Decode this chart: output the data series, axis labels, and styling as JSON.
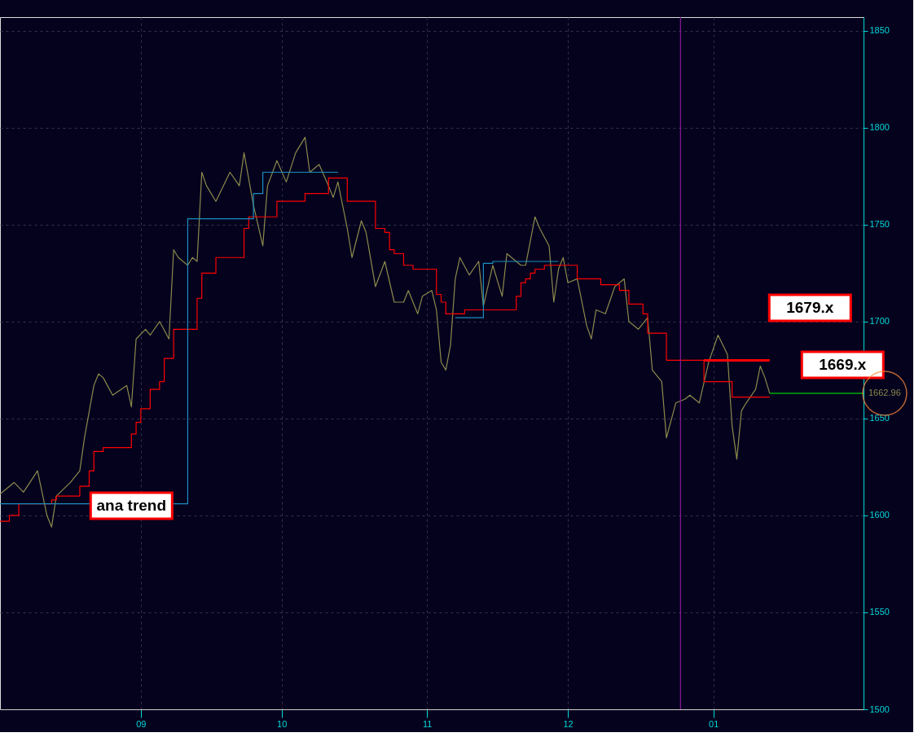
{
  "chart_data": {
    "type": "line",
    "xlim": [
      "2012-08-02",
      "2013-02-02"
    ],
    "ylim": [
      1500,
      1857
    ],
    "xticks": [
      {
        "value": "2012-09-01",
        "label": "09"
      },
      {
        "value": "2012-10-01",
        "label": "10"
      },
      {
        "value": "2012-11-01",
        "label": "11"
      },
      {
        "value": "2012-12-01",
        "label": "12"
      },
      {
        "value": "2013-01-01",
        "label": "01"
      }
    ],
    "yticks": [
      1500,
      1550,
      1600,
      1650,
      1700,
      1750,
      1800,
      1850
    ],
    "grid": true,
    "series": [
      {
        "type": "line",
        "color": "#8c8a4c",
        "x": [
          "2012-08-02",
          "2012-08-05",
          "2012-08-07",
          "2012-08-10",
          "2012-08-12",
          "2012-08-13",
          "2012-08-14",
          "2012-08-17",
          "2012-08-19",
          "2012-08-20",
          "2012-08-22",
          "2012-08-23",
          "2012-08-24",
          "2012-08-26",
          "2012-08-29",
          "2012-08-30",
          "2012-08-31",
          "2012-09-02",
          "2012-09-03",
          "2012-09-05",
          "2012-09-07",
          "2012-09-08",
          "2012-09-09",
          "2012-09-11",
          "2012-09-12",
          "2012-09-13",
          "2012-09-14",
          "2012-09-15",
          "2012-09-17",
          "2012-09-20",
          "2012-09-22",
          "2012-09-23",
          "2012-09-25",
          "2012-09-27",
          "2012-09-28",
          "2012-09-30",
          "2012-10-02",
          "2012-10-04",
          "2012-10-06",
          "2012-10-07",
          "2012-10-09",
          "2012-10-11",
          "2012-10-12",
          "2012-10-13",
          "2012-10-15",
          "2012-10-16",
          "2012-10-18",
          "2012-10-19",
          "2012-10-21",
          "2012-10-23",
          "2012-10-25",
          "2012-10-27",
          "2012-10-28",
          "2012-10-30",
          "2012-10-31",
          "2012-11-02",
          "2012-11-03",
          "2012-11-04",
          "2012-11-05",
          "2012-11-06",
          "2012-11-07",
          "2012-11-08",
          "2012-11-10",
          "2012-11-12",
          "2012-11-13",
          "2012-11-15",
          "2012-11-17",
          "2012-11-18",
          "2012-11-21",
          "2012-11-22",
          "2012-11-24",
          "2012-11-25",
          "2012-11-27",
          "2012-11-28",
          "2012-11-29",
          "2012-11-30",
          "2012-12-01",
          "2012-12-03",
          "2012-12-05",
          "2012-12-06",
          "2012-12-07",
          "2012-12-09",
          "2012-12-11",
          "2012-12-13",
          "2012-12-14",
          "2012-12-16",
          "2012-12-18",
          "2012-12-19",
          "2012-12-21",
          "2012-12-22",
          "2012-12-24",
          "2012-12-26",
          "2012-12-27",
          "2012-12-29",
          "2012-12-31",
          "2013-01-02",
          "2013-01-04",
          "2013-01-05",
          "2013-01-06",
          "2013-01-07",
          "2013-01-08",
          "2013-01-10",
          "2013-01-11",
          "2013-01-12",
          "2013-01-13"
        ],
        "values": [
          1611,
          1617,
          1612,
          1623,
          1600,
          1594,
          1610,
          1617,
          1623,
          1640,
          1667,
          1673,
          1671,
          1662,
          1667,
          1656,
          1691,
          1696,
          1693,
          1700,
          1691,
          1737,
          1733,
          1729,
          1733,
          1731,
          1777,
          1770,
          1762,
          1777,
          1770,
          1787,
          1760,
          1739,
          1770,
          1783,
          1772,
          1787,
          1795,
          1777,
          1781,
          1770,
          1764,
          1772,
          1748,
          1733,
          1752,
          1746,
          1718,
          1731,
          1710,
          1710,
          1716,
          1704,
          1713,
          1716,
          1706,
          1679,
          1675,
          1688,
          1722,
          1733,
          1724,
          1731,
          1708,
          1729,
          1713,
          1735,
          1729,
          1729,
          1754,
          1748,
          1739,
          1710,
          1727,
          1733,
          1720,
          1722,
          1698,
          1691,
          1706,
          1704,
          1718,
          1722,
          1700,
          1696,
          1702,
          1675,
          1669,
          1640,
          1658,
          1660,
          1662,
          1658,
          1679,
          1693,
          1683,
          1646,
          1629,
          1654,
          1658,
          1665,
          1677,
          1671,
          1663
        ]
      },
      {
        "type": "step",
        "color": "#ff0000",
        "x": [
          "2012-08-02",
          "2012-08-04",
          "2012-08-06",
          "2012-08-13",
          "2012-08-14",
          "2012-08-19",
          "2012-08-21",
          "2012-08-22",
          "2012-08-24",
          "2012-08-30",
          "2012-08-31",
          "2012-09-01",
          "2012-09-03",
          "2012-09-05",
          "2012-09-06",
          "2012-09-08",
          "2012-09-13",
          "2012-09-14",
          "2012-09-17",
          "2012-09-23",
          "2012-09-24",
          "2012-09-30",
          "2012-10-06",
          "2012-10-11",
          "2012-10-15",
          "2012-10-21",
          "2012-10-23",
          "2012-10-24",
          "2012-10-25",
          "2012-10-27",
          "2012-10-29",
          "2012-11-03",
          "2012-11-04",
          "2012-11-05",
          "2012-11-09",
          "2012-11-20",
          "2012-11-21",
          "2012-11-22",
          "2012-11-23",
          "2012-11-24",
          "2012-11-26",
          "2012-12-03",
          "2012-12-08",
          "2012-12-12",
          "2012-12-14",
          "2012-12-17",
          "2012-12-18",
          "2012-12-22",
          "2012-12-30",
          "2013-01-05",
          "2013-01-13"
        ],
        "values": [
          1597,
          1600,
          1606,
          1608,
          1610,
          1615,
          1623,
          1633,
          1635,
          1642,
          1648,
          1655,
          1665,
          1669,
          1681,
          1696,
          1712,
          1725,
          1733,
          1748,
          1754,
          1762,
          1766,
          1774,
          1762,
          1748,
          1746,
          1737,
          1735,
          1729,
          1727,
          1714,
          1710,
          1704,
          1706,
          1713,
          1720,
          1722,
          1725,
          1727,
          1729,
          1722,
          1719,
          1716,
          1709,
          1704,
          1694,
          1680,
          1669,
          1661,
          1661
        ]
      },
      {
        "type": "step",
        "color": "#1a8fc0",
        "x": [
          "2012-08-02",
          "2012-09-11",
          "2012-09-25",
          "2012-09-27",
          "2012-10-13",
          "2012-10-14",
          "2012-11-07",
          "2012-11-13",
          "2012-11-15",
          "2012-11-29"
        ],
        "values": [
          1606,
          1753,
          1766,
          1777,
          1777,
          null,
          1702,
          1730,
          1731,
          1731
        ]
      },
      {
        "type": "line",
        "color": "#ff0000",
        "x": [
          "2012-12-30",
          "2013-01-13"
        ],
        "values": [
          1680,
          1680
        ]
      },
      {
        "type": "line",
        "color": "#00ff00",
        "x": [
          "2013-01-13",
          "2013-02-02"
        ],
        "values": [
          1662.96,
          1662.96
        ]
      }
    ],
    "ref_lines": [
      {
        "axis": "x",
        "value": "2012-12-25",
        "color": "#8b1a9b"
      }
    ],
    "annotations": [
      {
        "text": "ana trend",
        "x": "2012-08-30",
        "y": 1605
      },
      "1679.x",
      "1669.x",
      {
        "text": "1662.96",
        "x": "2013-02-02",
        "y": 1662.96
      }
    ]
  }
}
